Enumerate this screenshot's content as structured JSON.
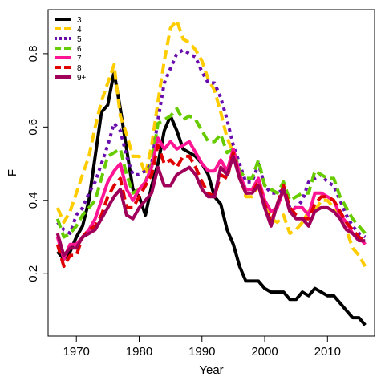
{
  "chart_data": {
    "type": "line",
    "title": "",
    "xlabel": "Year",
    "ylabel": "F",
    "xlim": [
      1965.5,
      2017.5
    ],
    "ylim": [
      0.03,
      0.92
    ],
    "xticks": [
      1970,
      1980,
      1990,
      2000,
      2010
    ],
    "yticks": [
      0.2,
      0.4,
      0.6,
      0.8
    ],
    "legend_position": "top-left",
    "grid": false,
    "x": [
      1967,
      1968,
      1969,
      1970,
      1971,
      1972,
      1973,
      1974,
      1975,
      1976,
      1977,
      1978,
      1979,
      1980,
      1981,
      1982,
      1983,
      1984,
      1985,
      1986,
      1987,
      1988,
      1989,
      1990,
      1991,
      1992,
      1993,
      1994,
      1995,
      1996,
      1997,
      1998,
      1999,
      2000,
      2001,
      2002,
      2003,
      2004,
      2005,
      2006,
      2007,
      2008,
      2009,
      2010,
      2011,
      2012,
      2013,
      2014,
      2015,
      2016
    ],
    "series": [
      {
        "name": "3",
        "color": "#000000",
        "dash": "solid",
        "width": 4,
        "values": [
          0.26,
          0.24,
          0.26,
          0.3,
          0.33,
          0.4,
          0.52,
          0.64,
          0.66,
          0.75,
          0.65,
          0.54,
          0.43,
          0.41,
          0.36,
          0.44,
          0.5,
          0.59,
          0.63,
          0.59,
          0.54,
          0.53,
          0.52,
          0.5,
          0.47,
          0.41,
          0.39,
          0.32,
          0.28,
          0.22,
          0.18,
          0.18,
          0.18,
          0.16,
          0.15,
          0.15,
          0.15,
          0.13,
          0.13,
          0.15,
          0.14,
          0.16,
          0.15,
          0.14,
          0.14,
          0.12,
          0.1,
          0.08,
          0.08,
          0.06
        ]
      },
      {
        "name": "4",
        "color": "#ffcc00",
        "dash": "dashed",
        "width": 4,
        "values": [
          0.38,
          0.34,
          0.37,
          0.42,
          0.47,
          0.52,
          0.6,
          0.67,
          0.72,
          0.77,
          0.63,
          0.58,
          0.52,
          0.52,
          0.47,
          0.55,
          0.67,
          0.78,
          0.87,
          0.89,
          0.84,
          0.83,
          0.81,
          0.78,
          0.73,
          0.7,
          0.64,
          0.57,
          0.53,
          0.47,
          0.41,
          0.41,
          0.44,
          0.39,
          0.35,
          0.34,
          0.36,
          0.31,
          0.32,
          0.34,
          0.37,
          0.37,
          0.4,
          0.4,
          0.38,
          0.35,
          0.32,
          0.27,
          0.25,
          0.22
        ]
      },
      {
        "name": "5",
        "color": "#6a0dad",
        "dash": "dotted",
        "width": 4,
        "values": [
          0.34,
          0.32,
          0.31,
          0.36,
          0.38,
          0.42,
          0.45,
          0.5,
          0.55,
          0.61,
          0.59,
          0.52,
          0.47,
          0.47,
          0.48,
          0.5,
          0.62,
          0.72,
          0.76,
          0.8,
          0.81,
          0.8,
          0.79,
          0.75,
          0.72,
          0.72,
          0.68,
          0.62,
          0.55,
          0.5,
          0.45,
          0.45,
          0.5,
          0.44,
          0.42,
          0.42,
          0.43,
          0.38,
          0.38,
          0.4,
          0.45,
          0.46,
          0.47,
          0.45,
          0.44,
          0.4,
          0.36,
          0.33,
          0.31,
          0.3
        ]
      },
      {
        "name": "6",
        "color": "#66cc00",
        "dash": "dashed",
        "width": 4,
        "values": [
          0.35,
          0.3,
          0.31,
          0.33,
          0.36,
          0.38,
          0.4,
          0.46,
          0.52,
          0.53,
          0.54,
          0.47,
          0.42,
          0.43,
          0.45,
          0.5,
          0.61,
          0.62,
          0.63,
          0.65,
          0.62,
          0.63,
          0.62,
          0.59,
          0.56,
          0.56,
          0.58,
          0.53,
          0.54,
          0.48,
          0.46,
          0.46,
          0.51,
          0.44,
          0.43,
          0.42,
          0.45,
          0.4,
          0.41,
          0.42,
          0.42,
          0.48,
          0.47,
          0.46,
          0.46,
          0.41,
          0.38,
          0.35,
          0.33,
          0.31
        ]
      },
      {
        "name": "7",
        "color": "#ff1493",
        "dash": "solid",
        "width": 4,
        "values": [
          0.3,
          0.24,
          0.28,
          0.28,
          0.3,
          0.32,
          0.35,
          0.4,
          0.45,
          0.48,
          0.5,
          0.43,
          0.4,
          0.43,
          0.45,
          0.49,
          0.57,
          0.54,
          0.56,
          0.54,
          0.55,
          0.56,
          0.53,
          0.5,
          0.48,
          0.48,
          0.51,
          0.48,
          0.54,
          0.47,
          0.43,
          0.43,
          0.46,
          0.4,
          0.37,
          0.38,
          0.43,
          0.37,
          0.38,
          0.38,
          0.36,
          0.42,
          0.42,
          0.41,
          0.4,
          0.36,
          0.34,
          0.31,
          0.3,
          0.28
        ]
      },
      {
        "name": "8",
        "color": "#e00000",
        "dash": "dashed",
        "width": 4,
        "values": [
          0.28,
          0.22,
          0.25,
          0.25,
          0.3,
          0.32,
          0.33,
          0.36,
          0.41,
          0.44,
          0.46,
          0.38,
          0.38,
          0.41,
          0.44,
          0.47,
          0.55,
          0.5,
          0.51,
          0.49,
          0.52,
          0.52,
          0.49,
          0.45,
          0.42,
          0.41,
          0.47,
          0.46,
          0.53,
          0.46,
          0.42,
          0.42,
          0.45,
          0.39,
          0.34,
          0.39,
          0.44,
          0.38,
          0.36,
          0.35,
          0.35,
          0.39,
          0.41,
          0.41,
          0.4,
          0.37,
          0.34,
          0.32,
          0.3,
          0.29
        ]
      },
      {
        "name": "9+",
        "color": "#a0005a",
        "dash": "solid",
        "width": 4,
        "values": [
          0.31,
          0.25,
          0.27,
          0.27,
          0.3,
          0.31,
          0.32,
          0.35,
          0.38,
          0.41,
          0.43,
          0.36,
          0.35,
          0.38,
          0.4,
          0.42,
          0.49,
          0.44,
          0.44,
          0.47,
          0.48,
          0.49,
          0.47,
          0.43,
          0.41,
          0.41,
          0.49,
          0.47,
          0.52,
          0.46,
          0.42,
          0.42,
          0.44,
          0.38,
          0.33,
          0.39,
          0.43,
          0.37,
          0.35,
          0.35,
          0.33,
          0.37,
          0.38,
          0.38,
          0.37,
          0.35,
          0.32,
          0.31,
          0.29,
          0.29
        ]
      }
    ]
  }
}
